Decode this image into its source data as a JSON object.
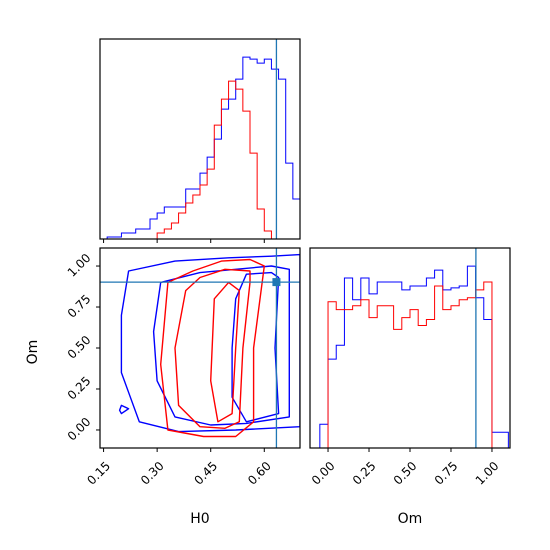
{
  "chart_data": [
    {
      "type": "histogram",
      "panel": "H0 marginal",
      "xlabel": "",
      "xlim": [
        0.14,
        0.7
      ],
      "truth": 0.634,
      "line_color": "#1f77b4",
      "bin_width": 0.02,
      "series": [
        {
          "color": "#0000ff",
          "x": [
            0.14,
            0.16,
            0.18,
            0.2,
            0.22,
            0.24,
            0.26,
            0.28,
            0.3,
            0.32,
            0.34,
            0.36,
            0.38,
            0.4,
            0.42,
            0.44,
            0.46,
            0.48,
            0.5,
            0.52,
            0.54,
            0.56,
            0.58,
            0.6,
            0.62,
            0.64,
            0.66,
            0.68
          ],
          "values": [
            0,
            1,
            1,
            3,
            3,
            5,
            5,
            10,
            13,
            16,
            16,
            16,
            25,
            25,
            33,
            41,
            50,
            65,
            70,
            80,
            91,
            90,
            88,
            90,
            85,
            80,
            38,
            20
          ]
        },
        {
          "color": "#ff0000",
          "x": [
            0.3,
            0.32,
            0.34,
            0.36,
            0.38,
            0.4,
            0.42,
            0.44,
            0.46,
            0.48,
            0.5,
            0.52,
            0.54,
            0.56,
            0.58,
            0.6,
            0.62,
            0.64,
            0.66,
            0.68
          ],
          "values": [
            3,
            5,
            8,
            13,
            18,
            22,
            27,
            35,
            57,
            70,
            79,
            75,
            64,
            43,
            15,
            4,
            0,
            0,
            0,
            0
          ]
        }
      ]
    },
    {
      "type": "contour",
      "panel": "H0-Om joint",
      "xlabel": "H0",
      "ylabel": "Om",
      "xlim": [
        0.14,
        0.7
      ],
      "ylim": [
        -0.11,
        1.11
      ],
      "xticks": [
        "0.15",
        "0.30",
        "0.45",
        "0.60"
      ],
      "yticks": [
        "0.00",
        "0.25",
        "0.50",
        "0.75",
        "1.00"
      ],
      "truth": [
        0.634,
        0.902
      ],
      "line_color": "#1f77b4",
      "series": [
        {
          "color": "#0000ff",
          "levels": [
            [
              [
                0.22,
                0.97
              ],
              [
                0.35,
                1.03
              ],
              [
                0.5,
                1.05
              ],
              [
                0.62,
                1.06
              ],
              [
                0.7,
                1.07
              ],
              [
                0.7,
                0.02
              ],
              [
                0.52,
                0.0
              ],
              [
                0.36,
                -0.01
              ],
              [
                0.25,
                0.05
              ],
              [
                0.2,
                0.35
              ],
              [
                0.2,
                0.7
              ],
              [
                0.22,
                0.97
              ]
            ],
            [
              [
                0.31,
                0.9
              ],
              [
                0.42,
                0.96
              ],
              [
                0.52,
                0.98
              ],
              [
                0.62,
                1.0
              ],
              [
                0.67,
                0.98
              ],
              [
                0.67,
                0.08
              ],
              [
                0.55,
                0.04
              ],
              [
                0.45,
                0.03
              ],
              [
                0.35,
                0.08
              ],
              [
                0.3,
                0.3
              ],
              [
                0.29,
                0.6
              ],
              [
                0.31,
                0.9
              ]
            ],
            [
              [
                0.55,
                0.95
              ],
              [
                0.62,
                0.96
              ],
              [
                0.64,
                0.93
              ],
              [
                0.63,
                0.5
              ],
              [
                0.64,
                0.1
              ],
              [
                0.55,
                0.05
              ],
              [
                0.51,
                0.2
              ],
              [
                0.51,
                0.5
              ],
              [
                0.52,
                0.8
              ],
              [
                0.55,
                0.95
              ]
            ],
            [
              [
                0.2,
                0.15
              ],
              [
                0.22,
                0.13
              ],
              [
                0.2,
                0.1
              ],
              [
                0.195,
                0.12
              ],
              [
                0.2,
                0.15
              ]
            ]
          ]
        },
        {
          "color": "#ff0000",
          "levels": [
            [
              [
                0.33,
                0.9
              ],
              [
                0.4,
                0.97
              ],
              [
                0.48,
                1.03
              ],
              [
                0.56,
                1.04
              ],
              [
                0.6,
                1.0
              ],
              [
                0.57,
                0.5
              ],
              [
                0.57,
                0.05
              ],
              [
                0.52,
                -0.04
              ],
              [
                0.43,
                -0.04
              ],
              [
                0.33,
                0.0
              ],
              [
                0.31,
                0.4
              ],
              [
                0.33,
                0.9
              ]
            ],
            [
              [
                0.38,
                0.85
              ],
              [
                0.42,
                0.93
              ],
              [
                0.49,
                0.98
              ],
              [
                0.56,
                0.97
              ],
              [
                0.56,
                0.9
              ],
              [
                0.54,
                0.5
              ],
              [
                0.53,
                0.05
              ],
              [
                0.49,
                0.01
              ],
              [
                0.42,
                0.02
              ],
              [
                0.36,
                0.15
              ],
              [
                0.35,
                0.5
              ],
              [
                0.38,
                0.85
              ]
            ],
            [
              [
                0.46,
                0.8
              ],
              [
                0.5,
                0.9
              ],
              [
                0.53,
                0.85
              ],
              [
                0.52,
                0.5
              ],
              [
                0.51,
                0.1
              ],
              [
                0.47,
                0.05
              ],
              [
                0.45,
                0.3
              ],
              [
                0.46,
                0.8
              ]
            ]
          ]
        }
      ]
    },
    {
      "type": "histogram",
      "panel": "Om marginal",
      "xlabel": "Om",
      "xlim": [
        -0.11,
        1.11
      ],
      "xticks": [
        "0.00",
        "0.25",
        "0.50",
        "0.75",
        "1.00"
      ],
      "truth": 0.902,
      "line_color": "#1f77b4",
      "bin_width": 0.05,
      "series": [
        {
          "color": "#0000ff",
          "x": [
            -0.1,
            -0.05,
            0.0,
            0.05,
            0.1,
            0.15,
            0.2,
            0.25,
            0.3,
            0.35,
            0.4,
            0.45,
            0.5,
            0.55,
            0.6,
            0.65,
            0.7,
            0.75,
            0.8,
            0.85,
            0.9,
            0.95,
            1.0,
            1.05
          ],
          "values": [
            0,
            12,
            45,
            52,
            86,
            75,
            86,
            78,
            84,
            84,
            84,
            80,
            82,
            82,
            86,
            90,
            80,
            81,
            82,
            92,
            76,
            65,
            8,
            8
          ]
        },
        {
          "color": "#ff0000",
          "x": [
            0.0,
            0.05,
            0.1,
            0.15,
            0.2,
            0.25,
            0.3,
            0.35,
            0.4,
            0.45,
            0.5,
            0.55,
            0.6,
            0.65,
            0.7,
            0.75,
            0.8,
            0.85,
            0.9,
            0.95,
            1.0,
            1.05
          ],
          "values": [
            74,
            70,
            70,
            72,
            75,
            66,
            72,
            72,
            60,
            66,
            70,
            62,
            65,
            82,
            70,
            72,
            75,
            76,
            80,
            84,
            0,
            0
          ]
        }
      ]
    }
  ]
}
